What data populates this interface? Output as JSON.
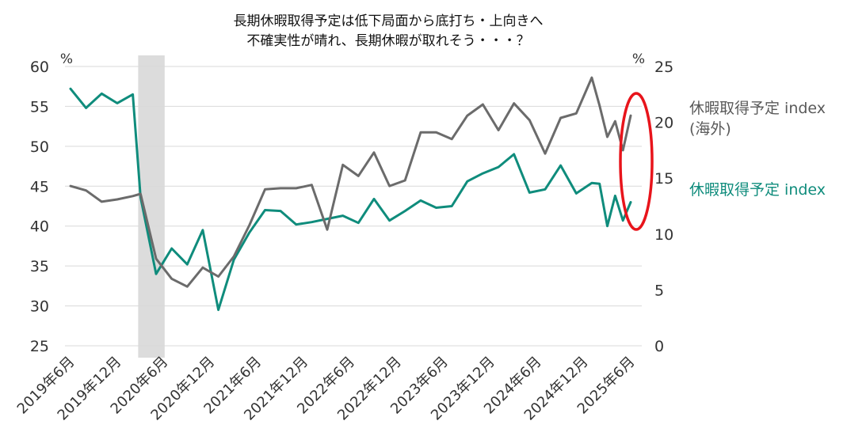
{
  "chart_data": {
    "type": "line",
    "title_lines": [
      "長期休暇取得予定は低下局面から底打ち・上向きへ",
      "不確実性が晴れ、長期休暇が取れそう・・・？"
    ],
    "left_axis": {
      "unit": "%",
      "range": [
        25,
        60
      ],
      "ticks": [
        25,
        30,
        35,
        40,
        45,
        50,
        55,
        60
      ]
    },
    "right_axis": {
      "unit": "%",
      "range": [
        0,
        25
      ],
      "ticks": [
        0,
        5,
        10,
        15,
        20,
        25
      ]
    },
    "x_tick_labels": [
      "2019年6月",
      "2019年12月",
      "2020年6月",
      "2020年12月",
      "2021年6月",
      "2021年12月",
      "2022年6月",
      "2022年12月",
      "2023年6月",
      "2023年12月",
      "2024年6月",
      "2024年12月",
      "2025年6月"
    ],
    "x_tick_months": [
      0,
      6,
      12,
      18,
      24,
      30,
      36,
      42,
      48,
      54,
      60,
      66,
      72
    ],
    "shaded_period": {
      "from_month": 9,
      "to_month": 12
    },
    "highlight": {
      "type": "ellipse",
      "color": "#e8141b",
      "at_end_of_series": true
    },
    "grid": true,
    "series": [
      {
        "name": "休暇取得予定 index",
        "axis": "left",
        "color": "#0f8c7c",
        "months": [
          0,
          2,
          4,
          6,
          8,
          9,
          11,
          13,
          15,
          17,
          19,
          21,
          23,
          25,
          27,
          29,
          31,
          33,
          35,
          37,
          39,
          41,
          43,
          45,
          47,
          49,
          51,
          53,
          55,
          57,
          59,
          61,
          63,
          65,
          67,
          68,
          69,
          70,
          71,
          72
        ],
        "values": [
          57.2,
          54.8,
          56.6,
          55.4,
          56.5,
          43.6,
          34.0,
          37.2,
          35.2,
          39.5,
          29.5,
          35.8,
          39.2,
          42.0,
          41.9,
          40.2,
          40.5,
          40.9,
          41.3,
          40.4,
          43.4,
          40.7,
          41.9,
          43.2,
          42.3,
          42.5,
          45.6,
          46.6,
          47.4,
          49.0,
          44.2,
          44.6,
          47.6,
          44.1,
          45.4,
          45.3,
          40.0,
          43.8,
          40.7,
          43.0
        ]
      },
      {
        "name": "休暇取得予定 index (海外)",
        "name_lines": [
          "休暇取得予定 index",
          "(海外)"
        ],
        "axis": "right",
        "color": "#6b6b6b",
        "months": [
          0,
          2,
          4,
          6,
          8,
          9,
          11,
          13,
          15,
          17,
          19,
          21,
          23,
          25,
          27,
          29,
          31,
          33,
          35,
          37,
          39,
          41,
          43,
          45,
          47,
          49,
          51,
          53,
          55,
          57,
          59,
          61,
          63,
          65,
          67,
          68,
          69,
          70,
          71,
          72
        ],
        "values": [
          14.3,
          13.9,
          12.9,
          13.1,
          13.4,
          13.6,
          7.8,
          6.0,
          5.3,
          7.0,
          6.2,
          8.0,
          10.8,
          14.0,
          14.1,
          14.1,
          14.4,
          10.4,
          16.2,
          15.2,
          17.3,
          14.3,
          14.8,
          19.1,
          19.1,
          18.5,
          20.6,
          21.6,
          19.3,
          21.7,
          20.2,
          17.2,
          20.4,
          20.8,
          24.0,
          21.5,
          18.7,
          20.1,
          17.5,
          20.6
        ]
      }
    ]
  }
}
